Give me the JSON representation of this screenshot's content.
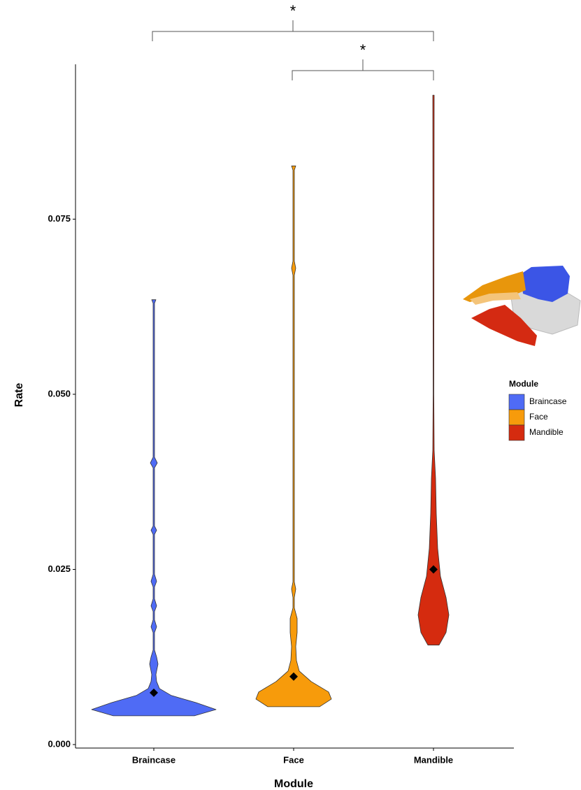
{
  "chart_data": {
    "type": "violin",
    "x_label": "Module",
    "y_label": "Rate",
    "categories": [
      "Braincase",
      "Face",
      "Mandible"
    ],
    "series": [
      {
        "name": "Braincase",
        "color": "#4f6bf5",
        "profile_y": [
          0.0041,
          0.005,
          0.006,
          0.007,
          0.008,
          0.009,
          0.01,
          0.0115,
          0.0125,
          0.0135,
          0.016,
          0.0168,
          0.0178,
          0.019,
          0.0198,
          0.0208,
          0.0225,
          0.0233,
          0.0243,
          0.03,
          0.0306,
          0.0312,
          0.0395,
          0.0402,
          0.041,
          0.063,
          0.0635
        ],
        "density": [
          0.58,
          0.89,
          0.6,
          0.25,
          0.08,
          0.04,
          0.03,
          0.06,
          0.04,
          0.01,
          0.01,
          0.04,
          0.01,
          0.01,
          0.04,
          0.01,
          0.01,
          0.04,
          0.01,
          0.01,
          0.04,
          0.01,
          0.01,
          0.05,
          0.01,
          0.01,
          0.03
        ],
        "mean": 0.0074
      },
      {
        "name": "Face",
        "color": "#f79b0b",
        "profile_y": [
          0.0054,
          0.0065,
          0.0075,
          0.009,
          0.0105,
          0.012,
          0.014,
          0.016,
          0.018,
          0.0195,
          0.021,
          0.0222,
          0.0232,
          0.067,
          0.068,
          0.069,
          0.082,
          0.0826
        ],
        "density": [
          0.37,
          0.54,
          0.5,
          0.25,
          0.08,
          0.04,
          0.03,
          0.05,
          0.05,
          0.01,
          0.01,
          0.03,
          0.01,
          0.01,
          0.03,
          0.01,
          0.01,
          0.03
        ],
        "mean": 0.0097
      },
      {
        "name": "Mandible",
        "color": "#d52b0f",
        "profile_y": [
          0.0142,
          0.016,
          0.0185,
          0.021,
          0.024,
          0.028,
          0.033,
          0.038,
          0.042,
          0.05,
          0.0927
        ],
        "density": [
          0.08,
          0.18,
          0.22,
          0.18,
          0.1,
          0.06,
          0.04,
          0.03,
          0.01,
          0.005,
          0.01
        ],
        "mean": 0.025
      }
    ],
    "ylim": [
      -0.0005,
      0.0971
    ],
    "yticks": [
      {
        "value": 0,
        "label": "0.000"
      },
      0.025,
      {
        "value": 0.05,
        "label": "0.050"
      },
      0.075
    ],
    "legend": {
      "title": "Module",
      "position": "right"
    },
    "annotations": [
      {
        "label": "*",
        "from": "Braincase",
        "to": "Mandible"
      },
      {
        "label": "*",
        "from": "Face",
        "to": "Mandible"
      }
    ]
  }
}
